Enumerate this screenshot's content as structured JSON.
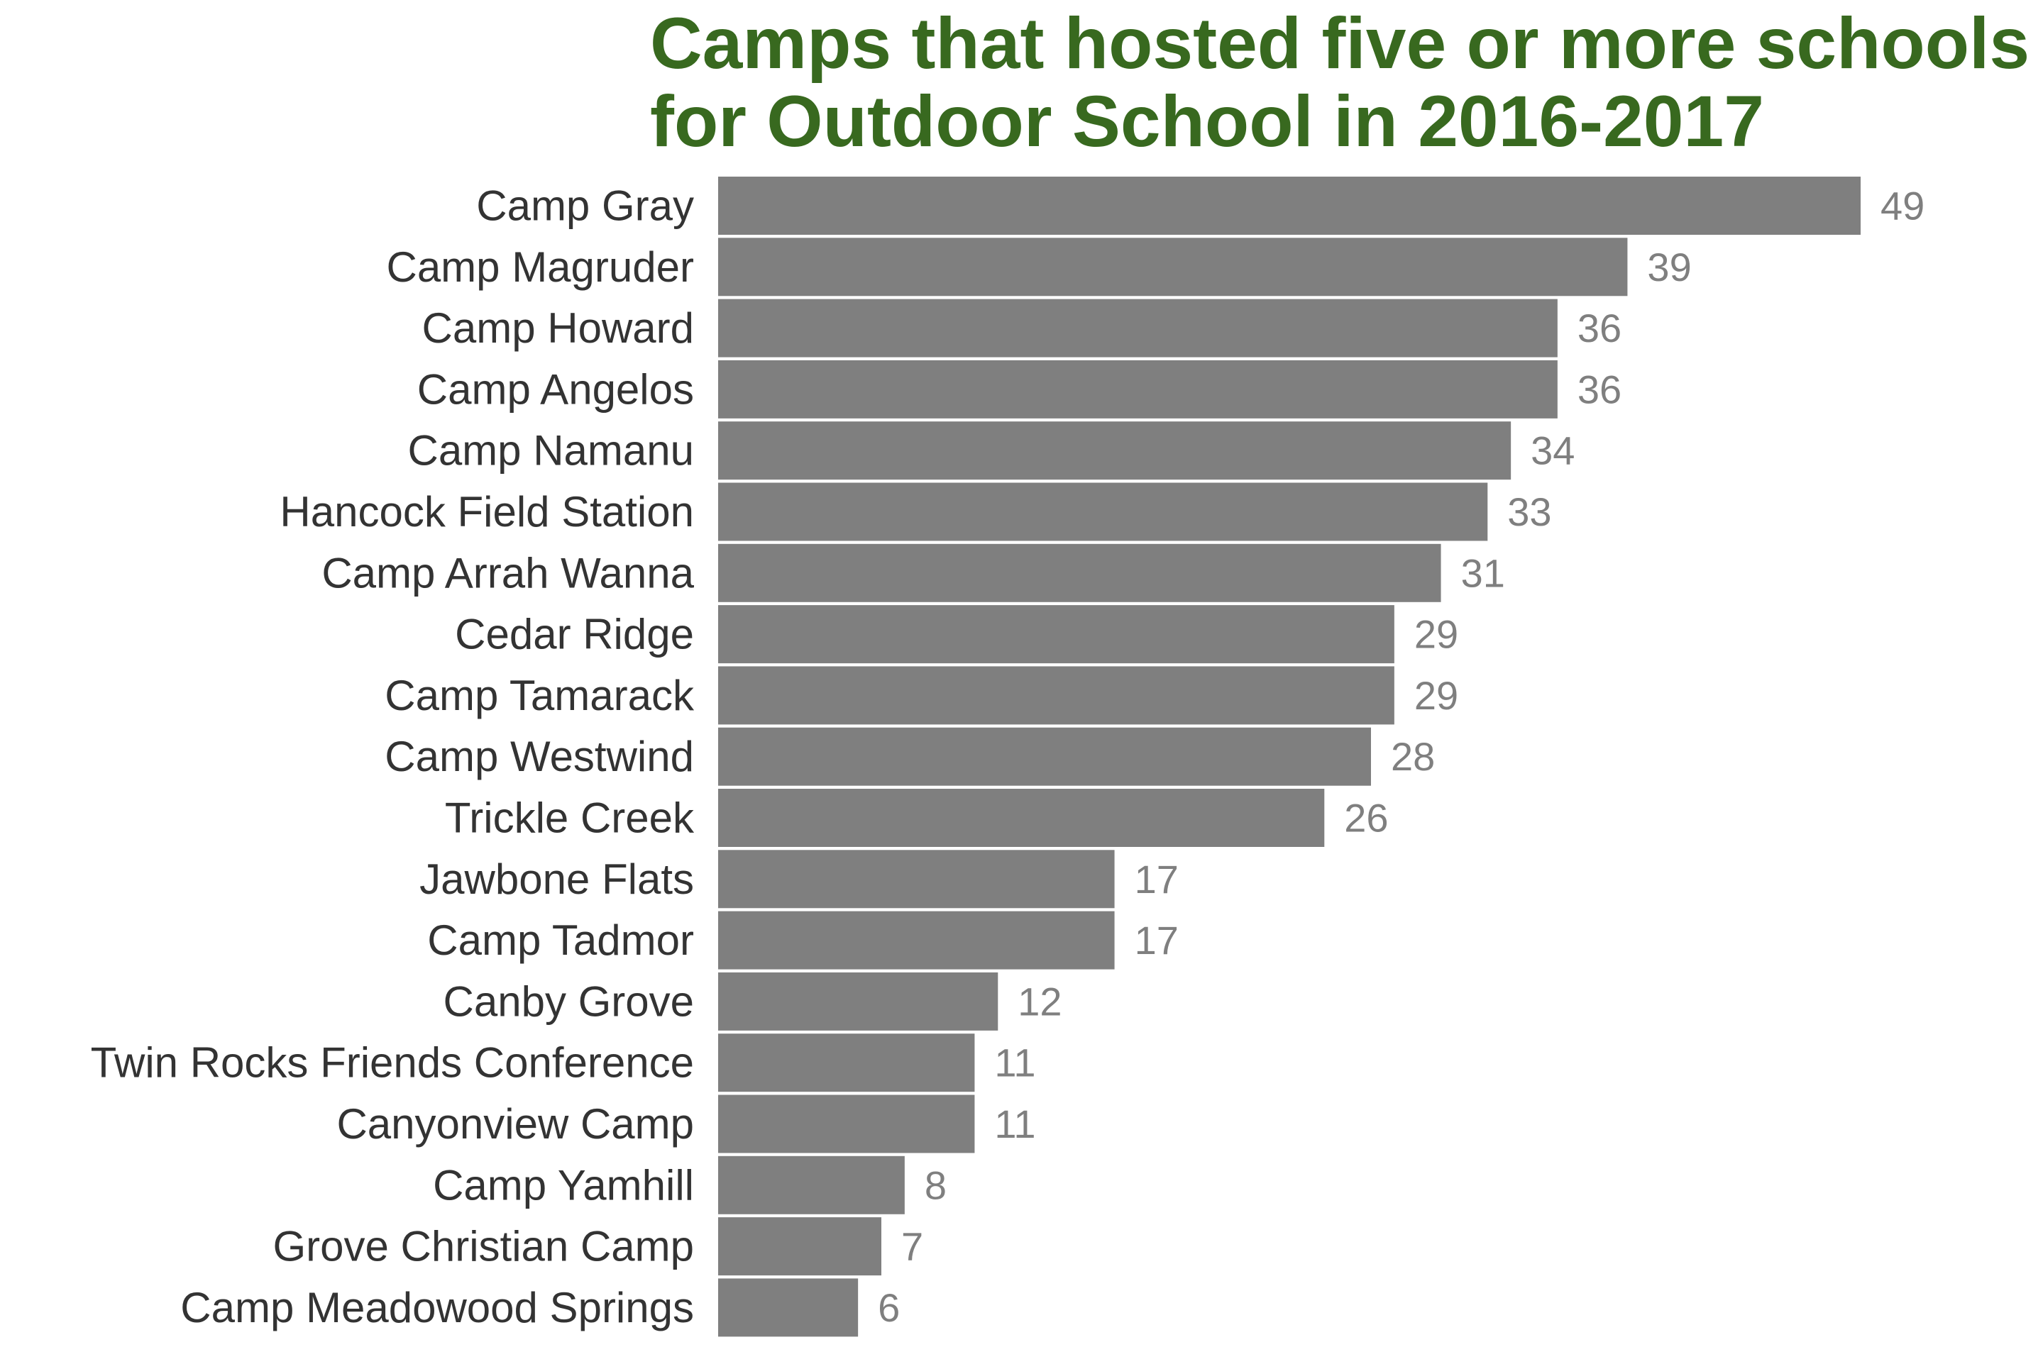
{
  "chart_data": {
    "type": "bar",
    "orientation": "horizontal",
    "title_lines": [
      "Camps that hosted five or more schools",
      "for Outdoor School in 2016-2017"
    ],
    "xlabel": "",
    "ylabel": "",
    "xlim": [
      0,
      49
    ],
    "grid": false,
    "legend": "none",
    "categories": [
      "Camp Gray",
      "Camp Magruder",
      "Camp Howard",
      "Camp Angelos",
      "Camp Namanu",
      "Hancock Field Station",
      "Camp Arrah Wanna",
      "Cedar Ridge",
      "Camp Tamarack",
      "Camp Westwind",
      "Trickle Creek",
      "Jawbone Flats",
      "Camp Tadmor",
      "Canby Grove",
      "Twin Rocks Friends Conference",
      "Canyonview Camp",
      "Camp Yamhill",
      "Grove Christian Camp",
      "Camp Meadowood Springs"
    ],
    "values": [
      49,
      39,
      36,
      36,
      34,
      33,
      31,
      29,
      29,
      28,
      26,
      17,
      17,
      12,
      11,
      11,
      8,
      7,
      6
    ],
    "colors": {
      "title": "#38691f",
      "bar": "#7f7f7f",
      "category_label": "#333333",
      "value_label": "#7f7f7f"
    }
  }
}
